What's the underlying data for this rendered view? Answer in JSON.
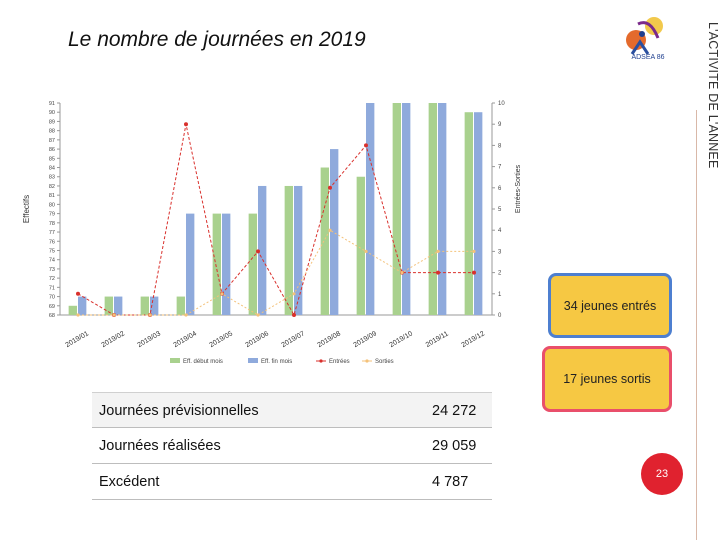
{
  "slide": {
    "title": "Le nombre de journées en 2019",
    "side_label": "L'ACTIVITE DE L'ANNEE",
    "logo_text": "ADSEA 86",
    "page_number": "23"
  },
  "callouts": {
    "entries": "34 jeunes entrés",
    "exits": "17 jeunes sortis"
  },
  "summary_table": {
    "rows": [
      {
        "label": "Journées prévisionnelles",
        "value": "24 272"
      },
      {
        "label": "Journées réalisées",
        "value": "29 059"
      },
      {
        "label": "Excédent",
        "value": "4 787"
      }
    ]
  },
  "colors": {
    "green_bar": "#a9d18e",
    "blue_bar": "#8faadc",
    "entries_line": "#d9302c",
    "exits_line": "#f4c27a",
    "callout_fill": "#f6c843",
    "page_badge": "#e0222f"
  },
  "chart_data": {
    "type": "bar",
    "categories": [
      "2019/01",
      "2019/02",
      "2019/03",
      "2019/04",
      "2019/05",
      "2019/06",
      "2019/07",
      "2019/08",
      "2019/09",
      "2019/10",
      "2019/11",
      "2019/12"
    ],
    "ylabel": "Effectifs",
    "y2label": "Entrées-Sorties",
    "ylim": [
      68,
      91
    ],
    "y_ticks": [
      "68",
      "69",
      "70",
      "71",
      "72",
      "73",
      "74",
      "75",
      "76",
      "77",
      "78",
      "79",
      "80",
      "81",
      "82",
      "83",
      "84",
      "85",
      "86",
      "87",
      "88",
      "89",
      "90",
      "91"
    ],
    "y2lim": [
      0,
      10
    ],
    "y2_ticks": [
      "0",
      "1",
      "2",
      "3",
      "4",
      "5",
      "6",
      "7",
      "8",
      "9",
      "10"
    ],
    "series": [
      {
        "name": "Eff. début mois",
        "kind": "bar",
        "axis": "left",
        "values": [
          69,
          70,
          70,
          70,
          79,
          79,
          82,
          84,
          83,
          91,
          91,
          90
        ]
      },
      {
        "name": "Eff. fin mois",
        "kind": "bar",
        "axis": "left",
        "values": [
          70,
          70,
          70,
          79,
          79,
          82,
          82,
          86,
          91,
          91,
          91,
          90
        ]
      },
      {
        "name": "Entrées",
        "kind": "line",
        "axis": "right",
        "values": [
          1,
          0,
          0,
          9,
          1,
          3,
          0,
          6,
          8,
          2,
          2,
          2
        ]
      },
      {
        "name": "Sorties",
        "kind": "line",
        "axis": "right",
        "values": [
          0,
          0,
          0,
          0,
          1,
          0,
          1,
          4,
          3,
          2,
          3,
          3
        ]
      }
    ],
    "legend": [
      "Eff. début mois",
      "Eff. fin mois",
      "Entrées",
      "Sorties"
    ],
    "legend_position": "bottom"
  }
}
